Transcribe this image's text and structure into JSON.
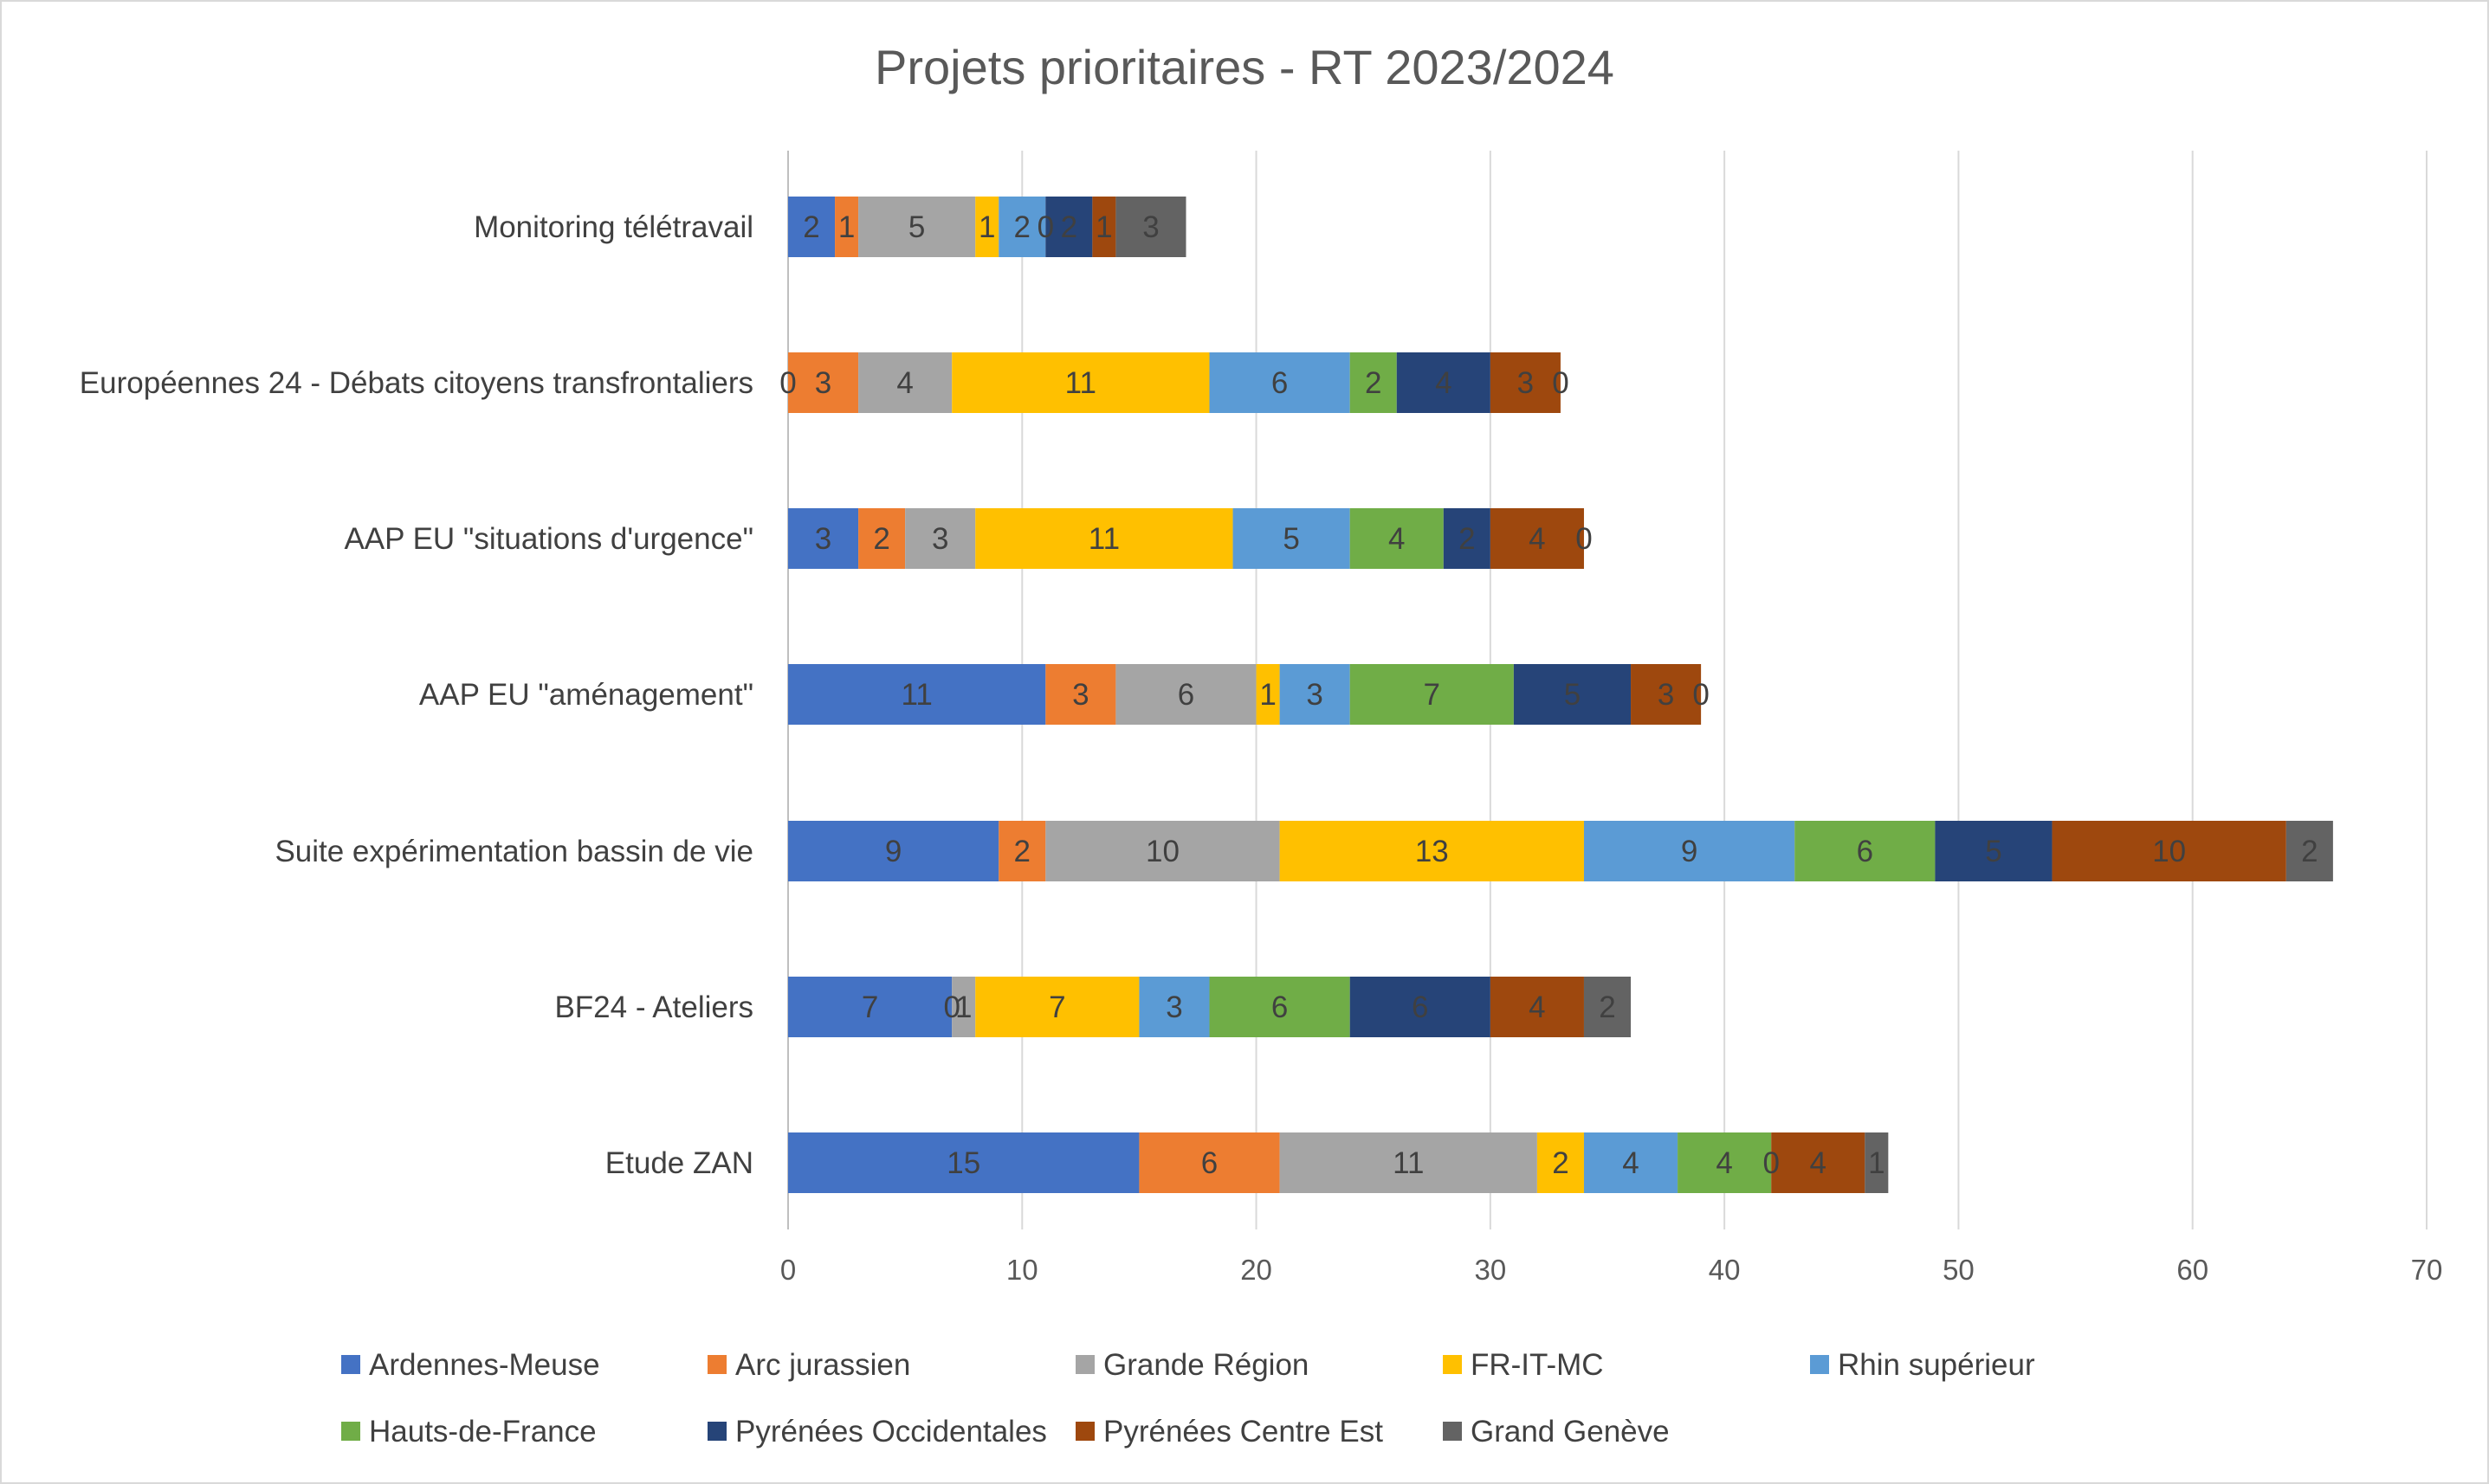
{
  "chart_data": {
    "type": "bar",
    "orientation": "horizontal",
    "stacked": true,
    "title": "Projets prioritaires - RT 2023/2024",
    "xlabel": "",
    "ylabel": "",
    "xlim": [
      0,
      70
    ],
    "x_ticks": [
      0,
      10,
      20,
      30,
      40,
      50,
      60,
      70
    ],
    "grid": "vertical",
    "legend_position": "bottom",
    "categories": [
      "Monitoring télétravail",
      "Européennes 24 - Débats citoyens transfrontaliers",
      "AAP EU \"situations d'urgence\"",
      "AAP EU \"aménagement\"",
      "Suite expérimentation bassin de vie",
      "BF24 - Ateliers",
      "Etude ZAN"
    ],
    "series": [
      {
        "name": "Ardennes-Meuse",
        "color": "#4472C4",
        "values": [
          2,
          0,
          3,
          11,
          9,
          7,
          15
        ]
      },
      {
        "name": "Arc jurassien",
        "color": "#ED7D31",
        "values": [
          1,
          3,
          2,
          3,
          2,
          0,
          6
        ]
      },
      {
        "name": "Grande Région",
        "color": "#A5A5A5",
        "values": [
          5,
          4,
          3,
          6,
          10,
          1,
          11
        ]
      },
      {
        "name": "FR-IT-MC",
        "color": "#FFC000",
        "values": [
          1,
          11,
          11,
          1,
          13,
          7,
          2
        ]
      },
      {
        "name": "Rhin supérieur",
        "color": "#5B9BD5",
        "values": [
          2,
          6,
          5,
          3,
          9,
          3,
          4
        ]
      },
      {
        "name": "Hauts-de-France",
        "color": "#70AD47",
        "values": [
          0,
          2,
          4,
          7,
          6,
          6,
          4
        ]
      },
      {
        "name": "Pyrénées Occidentales",
        "color": "#264478",
        "values": [
          2,
          4,
          2,
          5,
          5,
          6,
          0
        ]
      },
      {
        "name": "Pyrénées Centre Est",
        "color": "#9E480E",
        "values": [
          1,
          3,
          4,
          3,
          10,
          4,
          4
        ]
      },
      {
        "name": "Grand Genève",
        "color": "#636363",
        "values": [
          3,
          0,
          0,
          0,
          2,
          2,
          1
        ]
      }
    ]
  }
}
